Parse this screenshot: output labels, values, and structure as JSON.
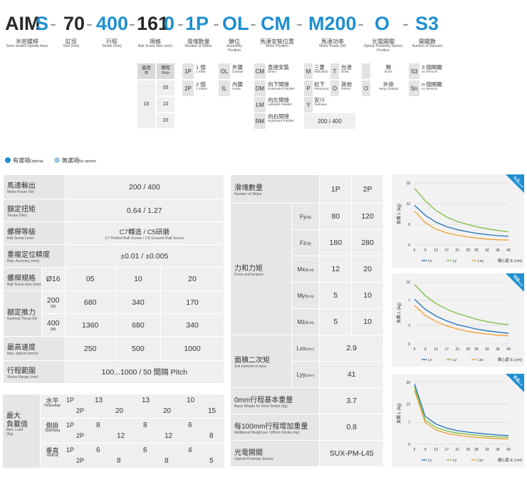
{
  "model_code": {
    "seg1": "AIM",
    "seg1b": "S",
    "seg2": "70",
    "seg3": "400",
    "seg4a": "161",
    "seg4b": "0",
    "seg5": "1P",
    "seg6": "OL",
    "seg7": "CM",
    "seg8": "M200",
    "seg9": "O",
    "seg10": "S3"
  },
  "code_labels": [
    {
      "zh": "半密螺桿",
      "en": "Semi Sealed Spindle Axes"
    },
    {
      "zh": "缸徑",
      "en": "Size (mm)"
    },
    {
      "zh": "行程",
      "en": "Stroke (mm)"
    },
    {
      "zh": "規格",
      "en": "Ball Screw Size (mm)"
    },
    {
      "zh": "滑塊數量",
      "en": "Number of Slides"
    },
    {
      "zh": "鎖位",
      "en": "Assembly Position"
    },
    {
      "zh": "馬達安裝位置",
      "en": "Motor Position"
    },
    {
      "zh": "馬達功率",
      "en": "Motor Power (W)"
    },
    {
      "zh": "光電開關",
      "en": "Optical Proximity Sensor Position"
    },
    {
      "zh": "開關數",
      "en": "Number of Sensors"
    }
  ],
  "spec_options": {
    "diam_head": "直徑",
    "diam_sym": "Φ",
    "pitch_head": "導程",
    "pitch_en": "Pitch",
    "diam_value": "16",
    "pitches": [
      "05",
      "10",
      "20"
    ]
  },
  "slide_options": [
    {
      "key": "1P",
      "zh": "1 個",
      "en": "1 Slide"
    },
    {
      "key": "2P",
      "zh": "2 個",
      "en": "2 Slides"
    }
  ],
  "assembly_options": [
    {
      "key": "OL",
      "zh": "外鎖",
      "en": "Outside"
    },
    {
      "key": "IL",
      "zh": "內鎖",
      "en": "Inside"
    }
  ],
  "motor_pos_options": [
    {
      "key": "CM",
      "zh": "直接安裝",
      "en": "Direct"
    },
    {
      "key": "DM",
      "zh": "向下間接",
      "en": "Downward Parallel"
    },
    {
      "key": "LM",
      "zh": "向左間接",
      "en": "Leftward Parallel"
    },
    {
      "key": "RM",
      "zh": "向右間接",
      "en": "Rightward Parallel"
    }
  ],
  "motor_brand_options": [
    {
      "key": "M",
      "zh": "三菱",
      "en": "Mitsubishi"
    },
    {
      "key": "T",
      "zh": "台達",
      "en": "Delta"
    },
    {
      "key": "P",
      "zh": "松下",
      "en": "Panasonic"
    },
    {
      "key": "O",
      "zh": "其他",
      "en": "Others"
    },
    {
      "key": "Y",
      "zh": "安川",
      "en": "Yaskawa"
    }
  ],
  "motor_power_values": "200 / 400",
  "sensor_pos_options": [
    {
      "key": "",
      "zh": "無",
      "en": "None"
    },
    {
      "key": "O",
      "zh": "外掛",
      "en": "Hang Outside"
    }
  ],
  "sensor_num_options": [
    {
      "key": "S3",
      "zh": "3 個開關",
      "en": "3x Sensors"
    },
    {
      "key": "Sn",
      "zh": "n 個開關",
      "en": "nx Sensors"
    }
  ],
  "legend": {
    "optional_zh": "有選項",
    "optional_en": "Optional",
    "none_zh": "無選項",
    "none_en": "No options",
    "optional_color": "#1e8fd1",
    "none_color": "#9cc7e3"
  },
  "left_table": {
    "motor_power": {
      "zh": "馬達輸出",
      "en": "Motor Power (W)",
      "value": "200 / 400"
    },
    "torque": {
      "zh": "額定扭矩",
      "en": "Torque (Nm)",
      "value": "0.64 / 1.27"
    },
    "screw_level": {
      "zh": "螺桿等級",
      "en": "Ball Screw Level",
      "value": "C7轉造 / C5研磨",
      "value_en": "C7 Rolled Ball Screw / C5 Ground Ball Screw"
    },
    "accuracy": {
      "zh": "重複定位精度",
      "en": "Rep. Accuracy (mm)",
      "value": "±0.01 / ±0.005"
    },
    "screw_size": {
      "zh": "螺桿規格",
      "en": "Ball Screw Size (mm)",
      "dia": "Ø16",
      "pitches": [
        "05",
        "10",
        "20"
      ]
    },
    "thrust": {
      "zh": "額定推力",
      "en": "Nominal Thrust (N)",
      "rows": [
        {
          "w": "200",
          "unit": "(W)",
          "values": [
            "680",
            "340",
            "170"
          ]
        },
        {
          "w": "400",
          "unit": "(W)",
          "values": [
            "1360",
            "680",
            "340"
          ]
        }
      ]
    },
    "speed": {
      "zh": "最高速度",
      "en": "Max. Speed (mm/s)",
      "values": [
        "250",
        "500",
        "1000"
      ]
    },
    "stroke": {
      "zh": "行程範圍",
      "en": "Stroke Range (mm)",
      "value": "100...1000 / 50 間隔 Pitch"
    },
    "max_load": {
      "zh1": "最大",
      "zh2": "負載值",
      "en1": "Max. Load",
      "en2": "(Kg)",
      "rows": [
        {
          "zh": "水平",
          "en": "Horizontal",
          "p1": "1P",
          "p2": "2P",
          "vals": [
            "13",
            "20",
            "13",
            "20",
            "10",
            "15"
          ]
        },
        {
          "zh": "側掛",
          "en": "Sidehang",
          "p1": "1P",
          "p2": "2P",
          "vals": [
            "8",
            "12",
            "8",
            "12",
            "6",
            "8"
          ]
        },
        {
          "zh": "垂直",
          "en": "Vertical",
          "p1": "1P",
          "p2": "2P",
          "vals": [
            "6",
            "8",
            "6",
            "8",
            "4",
            "5"
          ]
        }
      ]
    }
  },
  "right_table": {
    "slides": {
      "zh": "滑塊數量",
      "en": "Number of Slides",
      "c1": "1P",
      "c2": "2P"
    },
    "force": {
      "zh": "力和力矩",
      "en": "Force and torques",
      "rows": [
        {
          "sym": "Fy",
          "unit": "(N)",
          "v1": "80",
          "v2": "120"
        },
        {
          "sym": "Fz",
          "unit": "(N)",
          "v1": "180",
          "v2": "280"
        },
        {
          "sym": "Mx",
          "unit": "(N.m)",
          "v1": "12",
          "v2": "20"
        },
        {
          "sym": "My",
          "unit": "(N.m)",
          "v1": "5",
          "v2": "10"
        },
        {
          "sym": "Mz",
          "unit": "(N.m)",
          "v1": "5",
          "v2": "10"
        }
      ]
    },
    "moment": {
      "zh": "面積二次矩",
      "en": "2nd moment of area",
      "rows": [
        {
          "sym": "Lxx",
          "unit": "(cm⁴)",
          "v": "2.9"
        },
        {
          "sym": "Lyy",
          "unit": "(cm⁴)",
          "v": "41"
        }
      ]
    },
    "base_weight": {
      "zh": "0mm行程基本重量",
      "en": "Basic Weight for 0mm Stroke (kg)",
      "v": "3.7"
    },
    "add_weight": {
      "zh": "每100mm行程增加重量",
      "en": "Additional Weight per 100mm Stroke (kg)",
      "v": "0.8"
    },
    "sensor": {
      "zh": "光電開關",
      "en": "Optical Proximity Sensor",
      "v": "SUX-PM-L45"
    }
  },
  "chart_data": [
    {
      "type": "line",
      "badge_zh": "水平",
      "badge_en": "Horizontal",
      "ylabel": "負載 L (kg)",
      "xlabel": "偏心距 E (cm)",
      "x": [
        5,
        9,
        13,
        17,
        21,
        25,
        28,
        32,
        36,
        40
      ],
      "yticks": [
        0,
        6,
        12,
        18
      ],
      "ylim": [
        0,
        18
      ],
      "xlim": [
        5,
        40
      ],
      "series": [
        {
          "name": "Lx",
          "color": "#1e6fb8",
          "values": [
            11.5,
            8.6,
            6.6,
            5.3,
            4.4,
            3.8,
            3.4,
            3.0,
            2.7,
            2.5
          ]
        },
        {
          "name": "Ly",
          "color": "#7bc043",
          "values": [
            16.5,
            12.8,
            10.0,
            8.1,
            6.8,
            5.9,
            5.3,
            4.7,
            4.2,
            3.8
          ]
        },
        {
          "name": "Lxy",
          "color": "#f0a030",
          "values": [
            9.8,
            6.5,
            4.6,
            3.5,
            2.8,
            2.3,
            2.0,
            1.7,
            1.5,
            1.4
          ]
        }
      ]
    },
    {
      "type": "line",
      "badge_zh": "側掛",
      "badge_en": "Sidehang",
      "ylabel": "負載 L (kg)",
      "xlabel": "偏心距 E (cm)",
      "x": [
        5,
        9,
        13,
        17,
        21,
        25,
        28,
        32,
        36,
        40
      ],
      "yticks": [
        0,
        3,
        7,
        10
      ],
      "ylim": [
        0,
        10
      ],
      "xlim": [
        5,
        40
      ],
      "series": [
        {
          "name": "Lx",
          "color": "#1e6fb8",
          "values": [
            7.2,
            5.6,
            4.5,
            3.7,
            3.1,
            2.7,
            2.4,
            2.1,
            1.9,
            1.7
          ]
        },
        {
          "name": "Lz",
          "color": "#7bc043",
          "values": [
            9.6,
            7.8,
            6.5,
            5.6,
            4.9,
            4.4,
            4.0,
            3.6,
            3.3,
            3.1
          ]
        },
        {
          "name": "Lxz",
          "color": "#f0a030",
          "values": [
            6.2,
            4.6,
            3.6,
            2.9,
            2.4,
            2.0,
            1.8,
            1.6,
            1.4,
            1.3
          ]
        }
      ]
    },
    {
      "type": "line",
      "badge_zh": "垂直",
      "badge_en": "Vertical",
      "ylabel": "負載 L (kg)",
      "xlabel": "偏心距 E (cm)",
      "x": [
        5,
        9,
        13,
        17,
        21,
        25,
        28,
        32,
        36,
        40
      ],
      "yticks": [
        0,
        7,
        13,
        20
      ],
      "ylim": [
        0,
        20
      ],
      "xlim": [
        5,
        40
      ],
      "series": [
        {
          "name": "Ly",
          "color": "#1e6fb8",
          "values": [
            19.5,
            9.0,
            6.5,
            5.2,
            4.4,
            3.9,
            3.6,
            3.3,
            3.0,
            2.8
          ]
        },
        {
          "name": "Lz",
          "color": "#7bc043",
          "values": [
            18.5,
            7.8,
            5.4,
            4.3,
            3.6,
            3.2,
            2.9,
            2.6,
            2.4,
            2.2
          ]
        },
        {
          "name": "Lyz",
          "color": "#f0a030",
          "values": [
            17.5,
            7.0,
            4.6,
            3.5,
            2.9,
            2.5,
            2.2,
            2.0,
            1.8,
            1.7
          ]
        }
      ]
    }
  ]
}
